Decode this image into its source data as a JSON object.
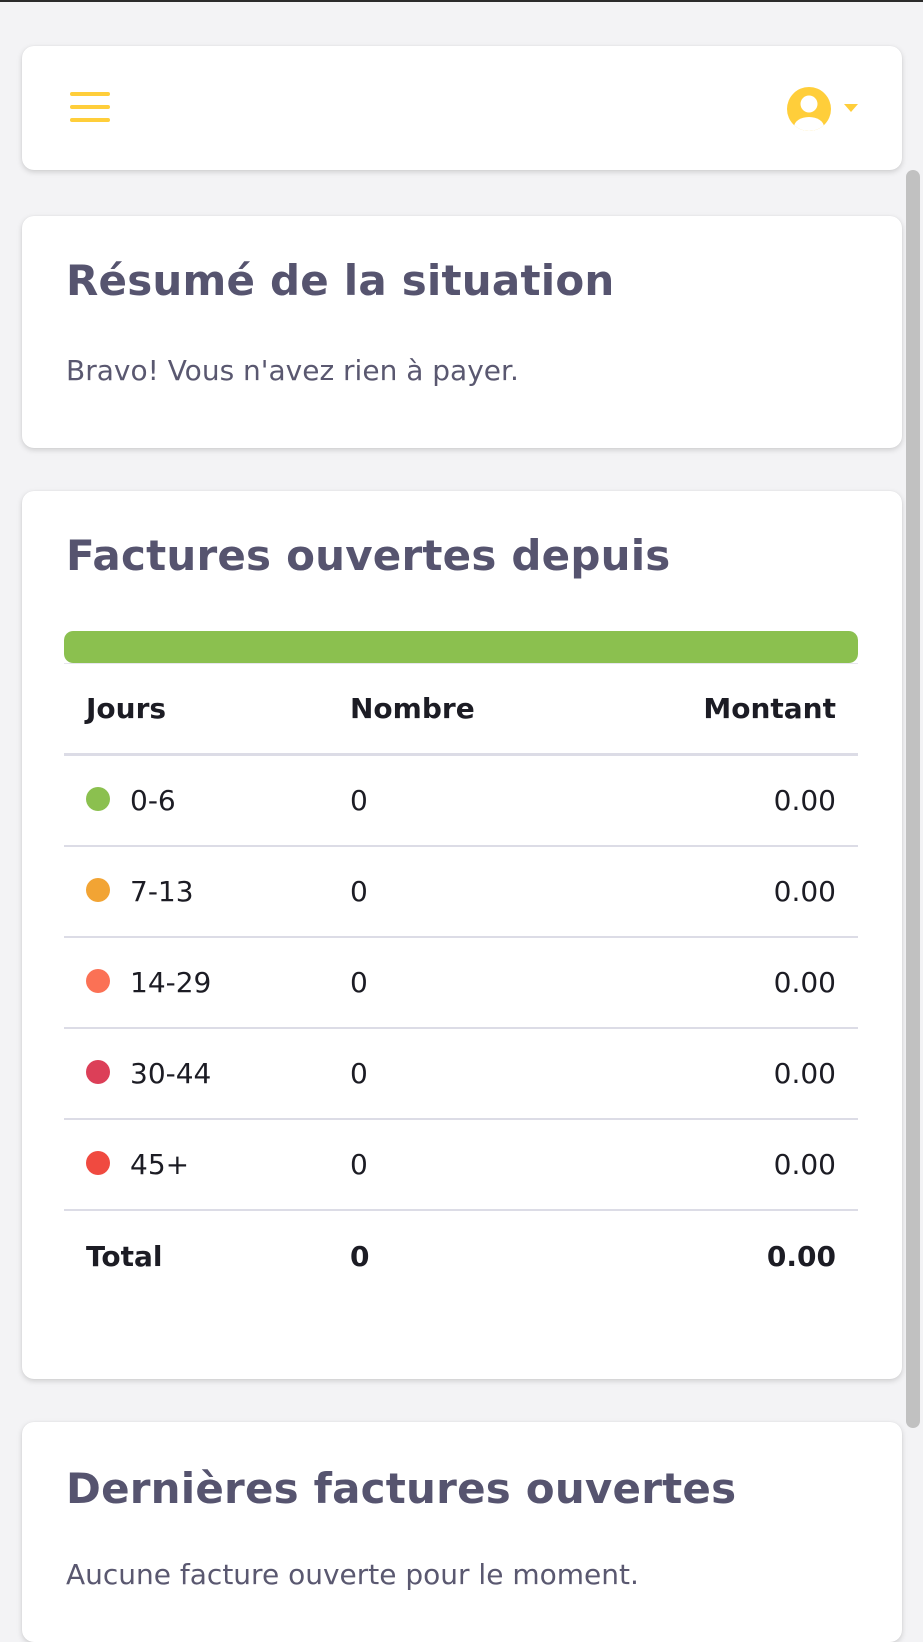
{
  "header": {
    "menu_icon": "hamburger-menu-icon",
    "user_icon": "user-circle-icon",
    "caret_icon": "caret-down-icon",
    "accent_color": "#ffce3a"
  },
  "summary": {
    "title": "Résumé de la situation",
    "message": "Bravo! Vous n'avez rien à payer."
  },
  "invoices_open": {
    "title": "Factures ouvertes depuis",
    "progress": {
      "fraction_green": 1.0,
      "color": "#8bc04f"
    },
    "columns": [
      "Jours",
      "Nombre",
      "Montant"
    ],
    "rows": [
      {
        "range": "0-6",
        "count": "0",
        "amount": "0.00",
        "color": "#8bc04f"
      },
      {
        "range": "7-13",
        "count": "0",
        "amount": "0.00",
        "color": "#f2a434"
      },
      {
        "range": "14-29",
        "count": "0",
        "amount": "0.00",
        "color": "#fb7155"
      },
      {
        "range": "30-44",
        "count": "0",
        "amount": "0.00",
        "color": "#dc3f58"
      },
      {
        "range": "45+",
        "count": "0",
        "amount": "0.00",
        "color": "#f04a40"
      }
    ],
    "total": {
      "label": "Total",
      "count": "0",
      "amount": "0.00"
    }
  },
  "last_invoices": {
    "title": "Dernières factures ouvertes",
    "message": "Aucune facture ouverte pour le moment."
  }
}
